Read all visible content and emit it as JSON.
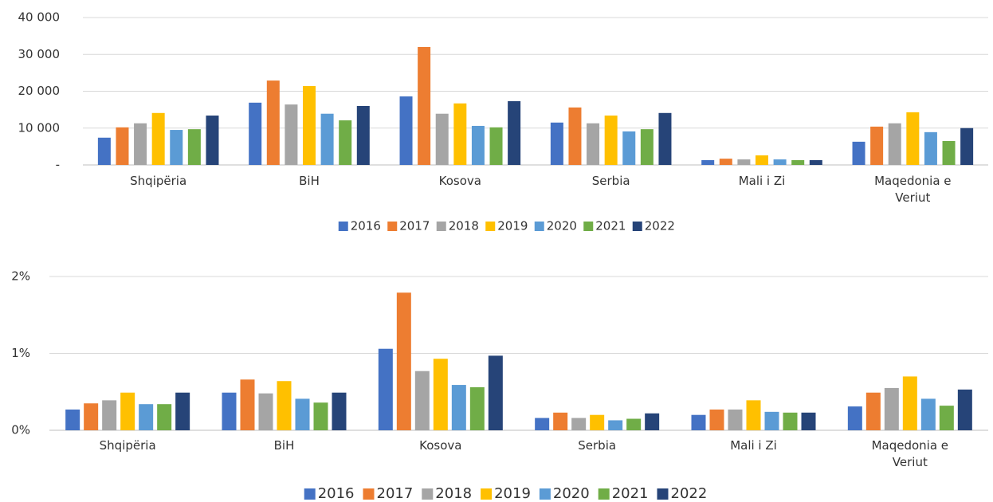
{
  "chart_data": [
    {
      "type": "bar",
      "categories": [
        "Shqipëria",
        "BiH",
        "Kosova",
        "Serbia",
        "Mali i Zi",
        "Maqedonia e Veriut"
      ],
      "series": [
        {
          "name": "2016",
          "color": "#4472c4",
          "values": [
            7400,
            16900,
            18600,
            11500,
            1300,
            6300
          ]
        },
        {
          "name": "2017",
          "color": "#ed7d31",
          "values": [
            10200,
            22900,
            32000,
            15600,
            1700,
            10400
          ]
        },
        {
          "name": "2018",
          "color": "#a5a5a5",
          "values": [
            11300,
            16400,
            13900,
            11300,
            1500,
            11300
          ]
        },
        {
          "name": "2019",
          "color": "#ffc000",
          "values": [
            14100,
            21400,
            16700,
            13400,
            2600,
            14300
          ]
        },
        {
          "name": "2020",
          "color": "#5b9bd5",
          "values": [
            9500,
            13900,
            10600,
            9100,
            1500,
            8900
          ]
        },
        {
          "name": "2021",
          "color": "#70ad47",
          "values": [
            9700,
            12100,
            10200,
            9700,
            1300,
            6500
          ]
        },
        {
          "name": "2022",
          "color": "#264478",
          "values": [
            13400,
            16000,
            17300,
            14100,
            1300,
            10000
          ]
        }
      ],
      "ylim": [
        0,
        40000
      ],
      "yticks": [
        {
          "value": 0,
          "label": "-"
        },
        {
          "value": 10000,
          "label": "10 000"
        },
        {
          "value": 20000,
          "label": "20 000"
        },
        {
          "value": 30000,
          "label": "30 000"
        },
        {
          "value": 40000,
          "label": "40 000"
        }
      ],
      "grid": true,
      "legend": "bottom"
    },
    {
      "type": "bar",
      "categories": [
        "Shqipëria",
        "BiH",
        "Kosova",
        "Serbia",
        "Mali i Zi",
        "Maqedonia e Veriut"
      ],
      "series": [
        {
          "name": "2016",
          "color": "#4472c4",
          "values": [
            0.27,
            0.49,
            1.06,
            0.16,
            0.2,
            0.31
          ]
        },
        {
          "name": "2017",
          "color": "#ed7d31",
          "values": [
            0.35,
            0.66,
            1.79,
            0.23,
            0.27,
            0.49
          ]
        },
        {
          "name": "2018",
          "color": "#a5a5a5",
          "values": [
            0.39,
            0.48,
            0.77,
            0.16,
            0.27,
            0.55
          ]
        },
        {
          "name": "2019",
          "color": "#ffc000",
          "values": [
            0.49,
            0.64,
            0.93,
            0.2,
            0.39,
            0.7
          ]
        },
        {
          "name": "2020",
          "color": "#5b9bd5",
          "values": [
            0.34,
            0.41,
            0.59,
            0.13,
            0.24,
            0.41
          ]
        },
        {
          "name": "2021",
          "color": "#70ad47",
          "values": [
            0.34,
            0.36,
            0.56,
            0.15,
            0.23,
            0.32
          ]
        },
        {
          "name": "2022",
          "color": "#264478",
          "values": [
            0.49,
            0.49,
            0.97,
            0.22,
            0.23,
            0.53
          ]
        }
      ],
      "ylim": [
        0,
        2
      ],
      "yticks": [
        {
          "value": 0,
          "label": "0%"
        },
        {
          "value": 1,
          "label": "1%"
        },
        {
          "value": 2,
          "label": "2%"
        }
      ],
      "grid": true,
      "legend": "bottom"
    }
  ]
}
